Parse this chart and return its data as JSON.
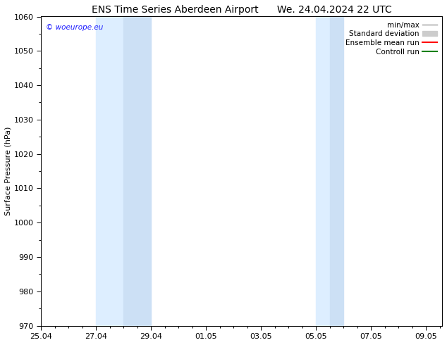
{
  "title_left": "ENS Time Series Aberdeen Airport",
  "title_right": "We. 24.04.2024 22 UTC",
  "ylabel": "Surface Pressure (hPa)",
  "ylim": [
    970,
    1060
  ],
  "ytick_interval": 10,
  "xlim_start": 0.0,
  "xlim_end": 14.58,
  "xtick_labels": [
    "25.04",
    "27.04",
    "29.04",
    "01.05",
    "03.05",
    "05.05",
    "07.05",
    "09.05"
  ],
  "xtick_positions": [
    0.0,
    2.0,
    4.0,
    6.0,
    8.0,
    10.0,
    12.0,
    14.0
  ],
  "shaded_bands": [
    {
      "start": 2.0,
      "end": 3.0,
      "color": "#ddeeff"
    },
    {
      "start": 3.0,
      "end": 4.0,
      "color": "#cce0f5"
    },
    {
      "start": 10.0,
      "end": 10.5,
      "color": "#ddeeff"
    },
    {
      "start": 10.5,
      "end": 11.0,
      "color": "#cce0f5"
    }
  ],
  "band_color_light": "#ddeeff",
  "band_color_dark": "#cce0f5",
  "background_color": "#ffffff",
  "watermark_text": "© woeurope.eu",
  "watermark_color": "#1a1aff",
  "legend_items": [
    {
      "label": "min/max",
      "type": "line",
      "color": "#999999",
      "linewidth": 1.0
    },
    {
      "label": "Standard deviation",
      "type": "rect",
      "color": "#cccccc"
    },
    {
      "label": "Ensemble mean run",
      "type": "line",
      "color": "#ff0000",
      "linewidth": 1.5
    },
    {
      "label": "Controll run",
      "type": "line",
      "color": "#008000",
      "linewidth": 1.5
    }
  ],
  "title_fontsize": 10,
  "axis_label_fontsize": 8,
  "tick_fontsize": 8,
  "legend_fontsize": 7.5
}
